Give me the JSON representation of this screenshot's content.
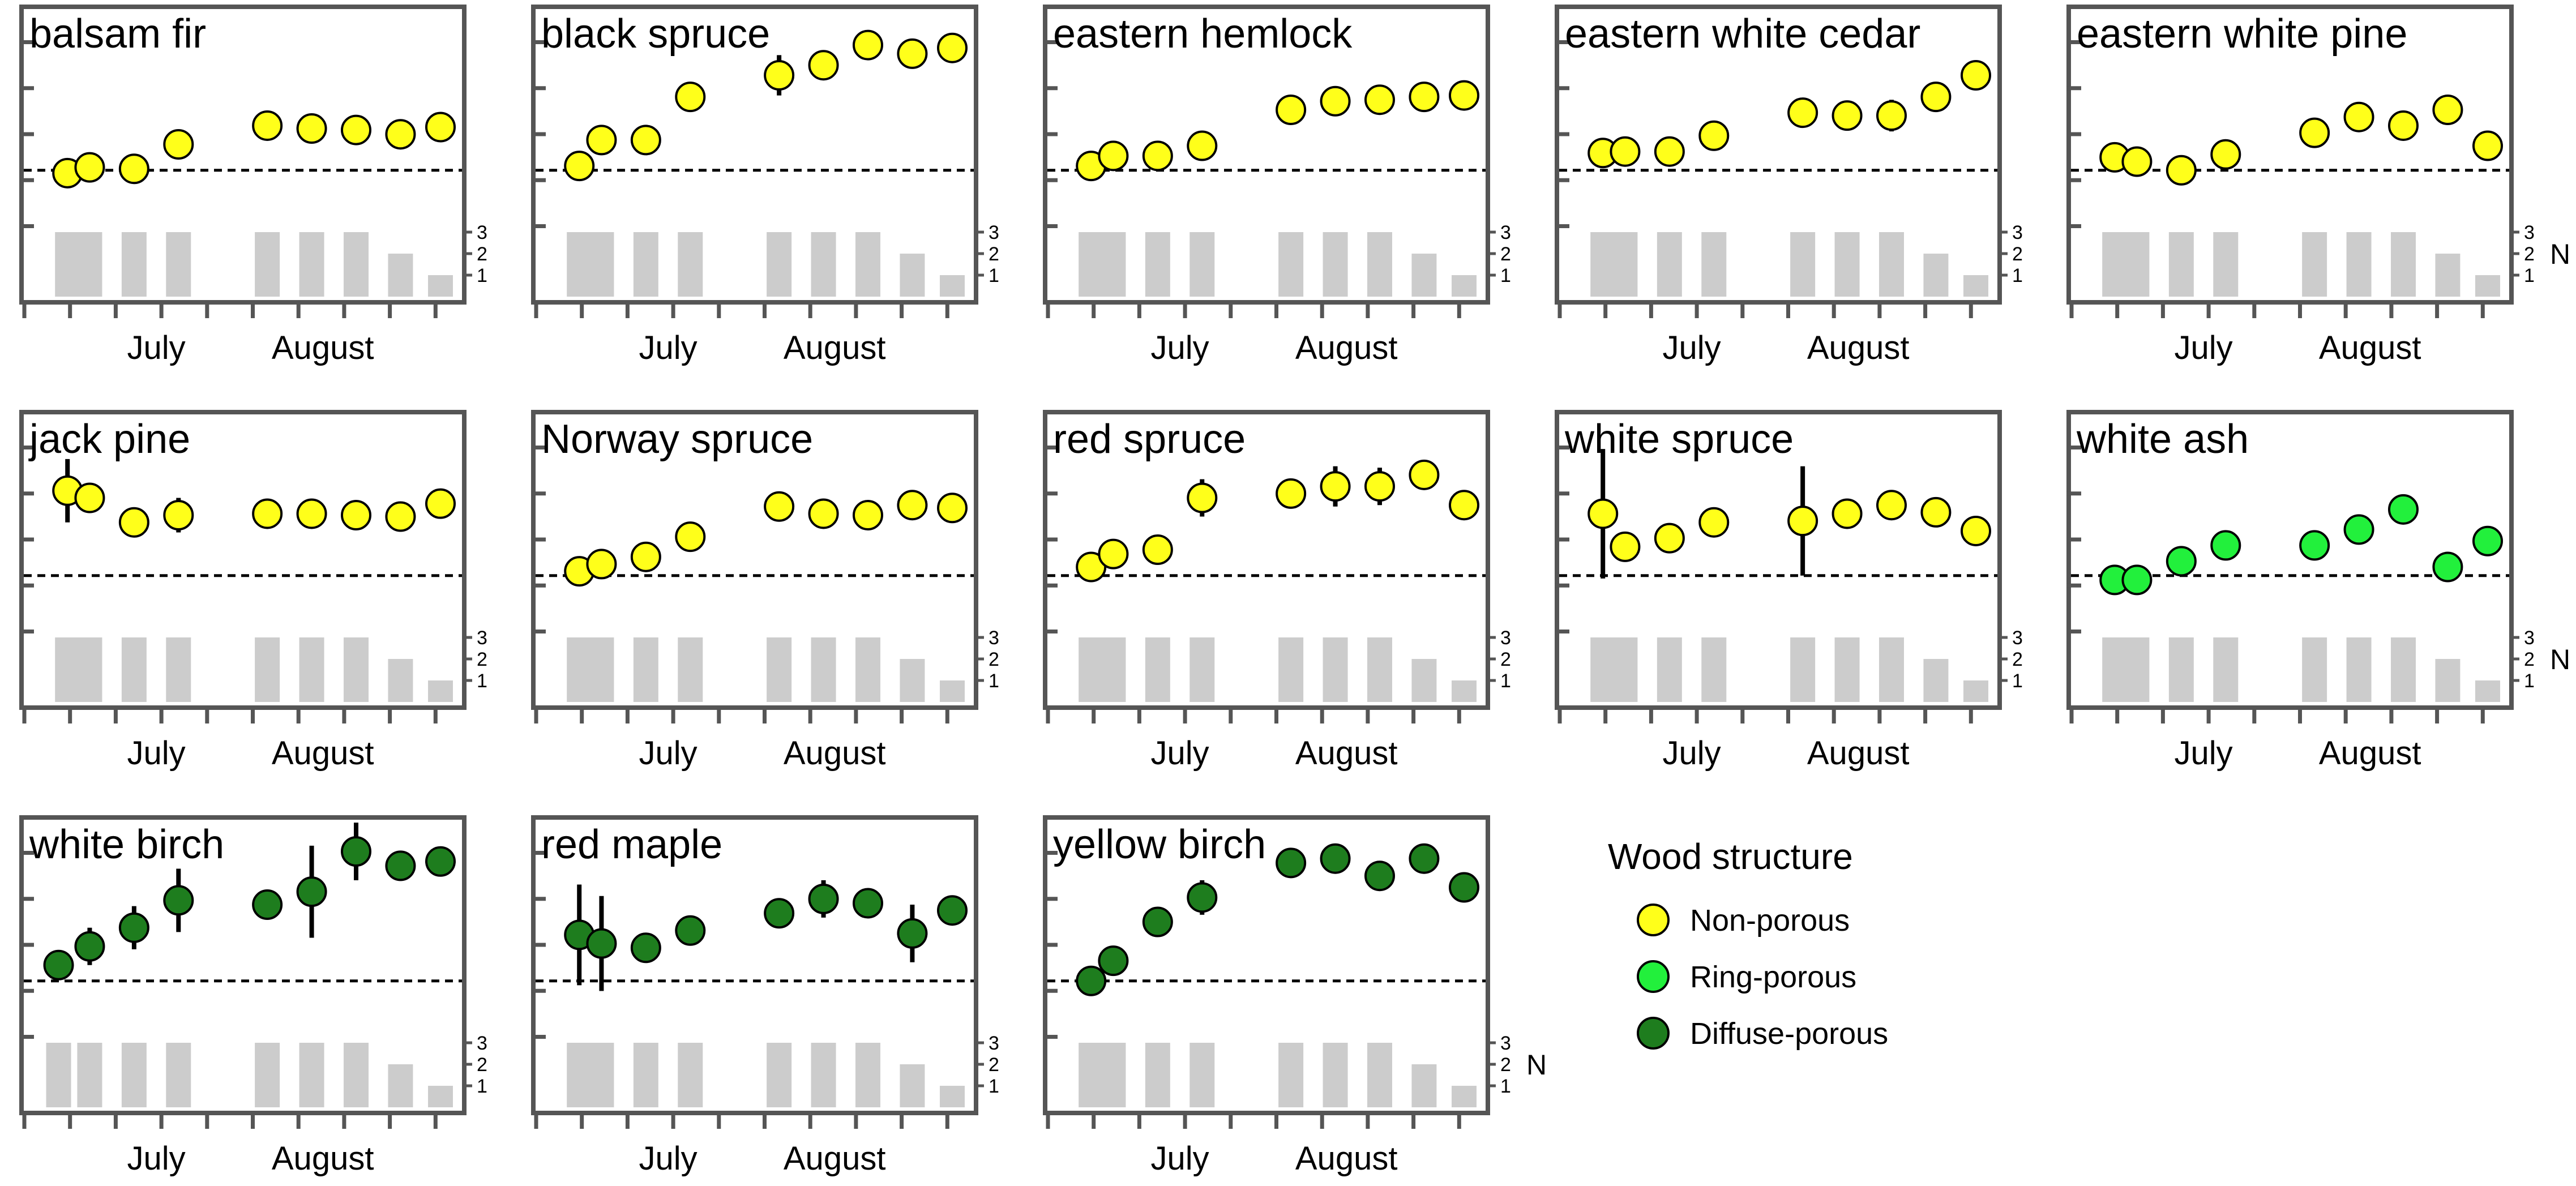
{
  "figure": {
    "type": "small-multiples-scatter",
    "n_axis_label": "N",
    "n_axis_ticks": [
      "3",
      "2",
      "1"
    ],
    "month_labels": [
      "July",
      "August"
    ],
    "legend": {
      "title": "Wood structure",
      "entries": [
        {
          "label": "Non-porous",
          "color": "#ffff1a"
        },
        {
          "label": "Ring-porous",
          "color": "#22f03c"
        },
        {
          "label": "Diffuse-porous",
          "color": "#1e7d1e"
        }
      ]
    }
  },
  "chart_data": [
    {
      "type": "scatter",
      "title": "balsam fir",
      "wood_structure": "Non-porous",
      "ylim": [
        0,
        1.2
      ],
      "baseline": 0.3,
      "x": [
        1,
        2,
        4,
        6,
        10,
        12,
        14,
        16,
        17.8
      ],
      "y": [
        0.28,
        0.32,
        0.31,
        0.48,
        0.61,
        0.59,
        0.58,
        0.55,
        0.6
      ],
      "err": [
        0.01,
        0.01,
        0.01,
        0.01,
        0.01,
        0.05,
        0.01,
        0.01,
        0.01
      ],
      "n": [
        3,
        3,
        3,
        3,
        3,
        3,
        3,
        2,
        1
      ]
    },
    {
      "type": "scatter",
      "title": "black spruce",
      "wood_structure": "Non-porous",
      "ylim": [
        0,
        1.2
      ],
      "baseline": 0.3,
      "x": [
        1,
        2,
        4,
        6,
        10,
        12,
        14,
        16,
        17.8
      ],
      "y": [
        0.33,
        0.51,
        0.51,
        0.81,
        0.96,
        1.03,
        1.17,
        1.11,
        1.15
      ],
      "err": [
        0.01,
        0.01,
        0.01,
        0.01,
        0.14,
        0.01,
        0.01,
        0.01,
        0.01
      ],
      "n": [
        3,
        3,
        3,
        3,
        3,
        3,
        3,
        2,
        1
      ]
    },
    {
      "type": "scatter",
      "title": "eastern hemlock",
      "wood_structure": "Non-porous",
      "ylim": [
        0,
        1.2
      ],
      "baseline": 0.3,
      "x": [
        1,
        2,
        4,
        6,
        10,
        12,
        14,
        16,
        17.8
      ],
      "y": [
        0.33,
        0.4,
        0.4,
        0.47,
        0.72,
        0.78,
        0.79,
        0.81,
        0.82
      ],
      "err": [
        0.01,
        0.01,
        0.01,
        0.01,
        0.07,
        0.07,
        0.07,
        0.01,
        0.01
      ],
      "n": [
        3,
        3,
        3,
        3,
        3,
        3,
        3,
        2,
        1
      ]
    },
    {
      "type": "scatter",
      "title": "eastern white cedar",
      "wood_structure": "Non-porous",
      "ylim": [
        0,
        1.2
      ],
      "baseline": 0.3,
      "x": [
        1,
        2,
        4,
        6,
        10,
        12,
        14,
        16,
        17.8
      ],
      "y": [
        0.42,
        0.43,
        0.43,
        0.54,
        0.7,
        0.68,
        0.68,
        0.81,
        0.96
      ],
      "err": [
        0.01,
        0.03,
        0.01,
        0.01,
        0.01,
        0.01,
        0.11,
        0.01,
        0.01
      ],
      "n": [
        3,
        3,
        3,
        3,
        3,
        3,
        3,
        2,
        1
      ]
    },
    {
      "type": "scatter",
      "title": "eastern white pine",
      "wood_structure": "Non-porous",
      "ylim": [
        0,
        1.2
      ],
      "baseline": 0.3,
      "x": [
        1,
        2,
        4,
        6,
        10,
        12,
        14,
        16,
        17.8
      ],
      "y": [
        0.39,
        0.36,
        0.3,
        0.41,
        0.56,
        0.67,
        0.61,
        0.72,
        0.47
      ],
      "err": [
        0.01,
        0.01,
        0.01,
        0.01,
        0.08,
        0.01,
        0.01,
        0.01,
        0.01
      ],
      "n": [
        3,
        3,
        3,
        3,
        3,
        3,
        3,
        2,
        1
      ]
    },
    {
      "type": "scatter",
      "title": "jack pine",
      "wood_structure": "Non-porous",
      "ylim": [
        0,
        1.2
      ],
      "baseline": 0.3,
      "x": [
        1,
        2,
        4,
        6,
        10,
        12,
        14,
        16,
        17.8
      ],
      "y": [
        0.89,
        0.84,
        0.67,
        0.72,
        0.73,
        0.73,
        0.72,
        0.71,
        0.8
      ],
      "err": [
        0.22,
        0.01,
        0.01,
        0.12,
        0.07,
        0.01,
        0.01,
        0.01,
        0.01
      ],
      "n": [
        3,
        3,
        3,
        3,
        3,
        3,
        3,
        2,
        1
      ]
    },
    {
      "type": "scatter",
      "title": "Norway spruce",
      "wood_structure": "Non-porous",
      "ylim": [
        0,
        1.2
      ],
      "baseline": 0.3,
      "x": [
        1,
        2,
        4,
        6,
        10,
        12,
        14,
        16,
        17.8
      ],
      "y": [
        0.33,
        0.38,
        0.43,
        0.57,
        0.78,
        0.73,
        0.72,
        0.79,
        0.77
      ],
      "err": [
        0.01,
        0.01,
        0.01,
        0.01,
        0.01,
        0.01,
        0.01,
        0.01,
        0.01
      ],
      "n": [
        3,
        3,
        3,
        3,
        3,
        3,
        3,
        2,
        1
      ]
    },
    {
      "type": "scatter",
      "title": "red spruce",
      "wood_structure": "Non-porous",
      "ylim": [
        0,
        1.2
      ],
      "baseline": 0.3,
      "x": [
        1,
        2,
        4,
        6,
        10,
        12,
        14,
        16,
        17.8
      ],
      "y": [
        0.36,
        0.45,
        0.48,
        0.84,
        0.87,
        0.92,
        0.92,
        1.0,
        0.79
      ],
      "err": [
        0.01,
        0.01,
        0.01,
        0.13,
        0.01,
        0.14,
        0.13,
        0.07,
        0.01
      ],
      "n": [
        3,
        3,
        3,
        3,
        3,
        3,
        3,
        2,
        1
      ]
    },
    {
      "type": "scatter",
      "title": "white spruce",
      "wood_structure": "Non-porous",
      "ylim": [
        0,
        1.2
      ],
      "baseline": 0.3,
      "x": [
        1,
        2,
        4,
        6,
        10,
        12,
        14,
        16,
        17.8
      ],
      "y": [
        0.73,
        0.5,
        0.56,
        0.67,
        0.68,
        0.73,
        0.79,
        0.74,
        0.61
      ],
      "err": [
        0.45,
        0.01,
        0.01,
        0.01,
        0.38,
        0.01,
        0.01,
        0.01,
        0.01
      ],
      "n": [
        3,
        3,
        3,
        3,
        3,
        3,
        3,
        2,
        1
      ]
    },
    {
      "type": "scatter",
      "title": "white ash",
      "wood_structure": "Ring-porous",
      "ylim": [
        0,
        1.2
      ],
      "baseline": 0.3,
      "x": [
        1,
        2,
        4,
        6,
        10,
        12,
        14,
        16,
        17.8
      ],
      "y": [
        0.27,
        0.27,
        0.4,
        0.51,
        0.51,
        0.62,
        0.76,
        0.36,
        0.54
      ],
      "err": [
        0.01,
        0.01,
        0.01,
        0.08,
        0.01,
        0.01,
        0.01,
        0.01,
        0.01
      ],
      "n": [
        3,
        3,
        3,
        3,
        3,
        3,
        3,
        2,
        1
      ]
    },
    {
      "type": "scatter",
      "title": "white birch",
      "wood_structure": "Diffuse-porous",
      "ylim": [
        0,
        1.2
      ],
      "baseline": 0.3,
      "x": [
        0.6,
        2,
        4,
        6,
        10,
        12,
        14,
        16,
        17.8
      ],
      "y": [
        0.41,
        0.54,
        0.67,
        0.86,
        0.83,
        0.92,
        1.2,
        1.1,
        1.13
      ],
      "err": [
        0.01,
        0.13,
        0.15,
        0.22,
        0.09,
        0.32,
        0.2,
        0.01,
        0.01
      ],
      "n": [
        3,
        3,
        3,
        3,
        3,
        3,
        3,
        2,
        1
      ]
    },
    {
      "type": "scatter",
      "title": "red maple",
      "wood_structure": "Diffuse-porous",
      "ylim": [
        0,
        1.2
      ],
      "baseline": 0.3,
      "x": [
        1,
        2,
        4,
        6,
        10,
        12,
        14,
        16,
        17.8
      ],
      "y": [
        0.62,
        0.56,
        0.53,
        0.65,
        0.77,
        0.87,
        0.84,
        0.63,
        0.79
      ],
      "err": [
        0.35,
        0.33,
        0.01,
        0.07,
        0.08,
        0.13,
        0.08,
        0.2,
        0.01
      ],
      "n": [
        3,
        3,
        3,
        3,
        3,
        3,
        3,
        2,
        1
      ]
    },
    {
      "type": "scatter",
      "title": "yellow birch",
      "wood_structure": "Diffuse-porous",
      "ylim": [
        0,
        1.2
      ],
      "baseline": 0.3,
      "x": [
        1,
        2,
        4,
        6,
        10,
        12,
        14,
        16,
        17.8
      ],
      "y": [
        0.3,
        0.44,
        0.71,
        0.88,
        1.12,
        1.15,
        1.03,
        1.15,
        0.95
      ],
      "err": [
        0.01,
        0.01,
        0.01,
        0.12,
        0.1,
        0.01,
        0.01,
        0.01,
        0.01
      ],
      "n": [
        3,
        3,
        3,
        3,
        3,
        3,
        3,
        2,
        1
      ]
    }
  ]
}
